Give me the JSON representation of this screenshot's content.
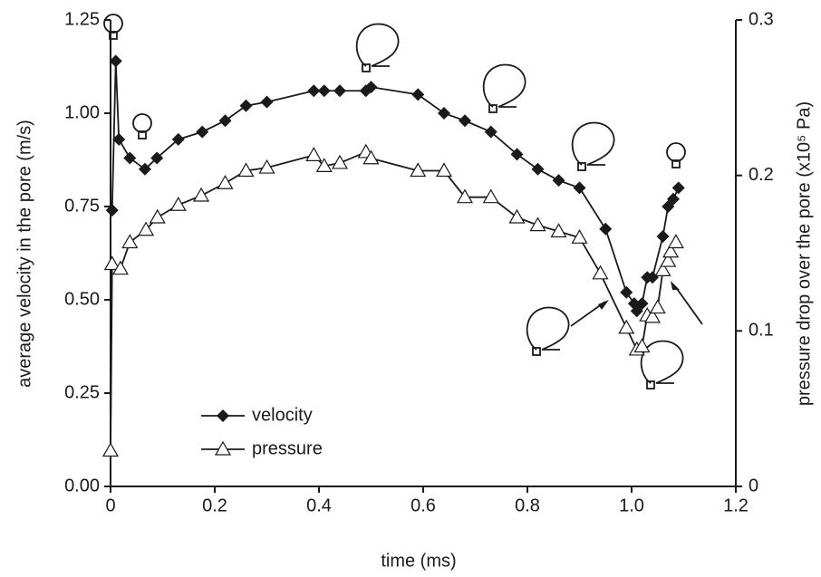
{
  "chart_data": {
    "type": "line",
    "x_label": "time (ms)",
    "y_label": "average velocity in the pore (m/s)",
    "y2_label": "pressure drop over the pore (x10⁵ Pa)",
    "xlim": [
      0,
      1.2
    ],
    "xticks": [
      0,
      0.2,
      0.4,
      0.6,
      0.8,
      {
        "value": 1,
        "label": "1.0"
      },
      1.2
    ],
    "ylim": [
      0,
      1.25
    ],
    "yticks": [
      {
        "value": 0,
        "label": "0.00"
      },
      {
        "value": 0.25,
        "label": "0.25"
      },
      {
        "value": 0.5,
        "label": "0.50"
      },
      {
        "value": 0.75,
        "label": "0.75"
      },
      {
        "value": 1,
        "label": "1.00"
      },
      {
        "value": 1.25,
        "label": "1.25"
      }
    ],
    "y2lim": [
      0,
      0.3
    ],
    "y2ticks": [
      0,
      0.1,
      0.2,
      0.3
    ],
    "series": [
      {
        "name": "velocity",
        "color": "#1a1a1a",
        "marker": "diamond",
        "x": [
          0.003,
          0.01,
          0.016,
          0.037,
          0.066,
          0.089,
          0.13,
          0.176,
          0.22,
          0.26,
          0.3,
          0.39,
          0.41,
          0.44,
          0.49,
          0.5,
          0.59,
          0.64,
          0.68,
          0.73,
          0.78,
          0.82,
          0.86,
          0.9,
          0.95,
          0.99,
          1.005,
          1.01,
          1.02,
          1.03,
          1.04,
          1.06,
          1.07,
          1.08,
          1.09
        ],
        "values": [
          0.74,
          1.14,
          0.93,
          0.88,
          0.85,
          0.88,
          0.93,
          0.95,
          0.98,
          1.02,
          1.03,
          1.06,
          1.06,
          1.06,
          1.06,
          1.07,
          1.05,
          1.0,
          0.98,
          0.95,
          0.89,
          0.85,
          0.82,
          0.8,
          0.69,
          0.52,
          0.49,
          0.47,
          0.49,
          0.56,
          0.56,
          0.67,
          0.75,
          0.77,
          0.8
        ]
      },
      {
        "name": "pressure",
        "color": "#1a1a1a",
        "marker": "triangle",
        "axis": "y2",
        "x": [
          0,
          0.003,
          0.019,
          0.037,
          0.068,
          0.09,
          0.13,
          0.174,
          0.22,
          0.26,
          0.3,
          0.39,
          0.41,
          0.44,
          0.49,
          0.5,
          0.59,
          0.64,
          0.68,
          0.73,
          0.78,
          0.82,
          0.86,
          0.9,
          0.94,
          0.99,
          1.01,
          1.02,
          1.03,
          1.04,
          1.05,
          1.06,
          1.07,
          1.075,
          1.085
        ],
        "values": [
          0.023,
          0.143,
          0.14,
          0.157,
          0.165,
          0.173,
          0.181,
          0.187,
          0.195,
          0.203,
          0.205,
          0.213,
          0.206,
          0.208,
          0.215,
          0.211,
          0.203,
          0.203,
          0.186,
          0.186,
          0.173,
          0.168,
          0.164,
          0.16,
          0.137,
          0.102,
          0.088,
          0.09,
          0.11,
          0.109,
          0.115,
          0.139,
          0.145,
          0.151,
          0.157
        ]
      }
    ]
  }
}
